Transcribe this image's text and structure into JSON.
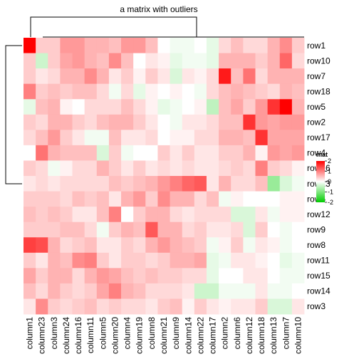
{
  "chart_data": {
    "type": "heatmap",
    "title": "a matrix with outliers",
    "row_labels": [
      "row1",
      "row10",
      "row7",
      "row18",
      "row5",
      "row2",
      "row17",
      "row4",
      "row16",
      "row13",
      "row6",
      "row12",
      "row9",
      "row8",
      "row11",
      "row15",
      "row14",
      "row3"
    ],
    "column_labels": [
      "column1",
      "column23",
      "column3",
      "column24",
      "column16",
      "column11",
      "column5",
      "column20",
      "column4",
      "column19",
      "column8",
      "column21",
      "column9",
      "column14",
      "column22",
      "column17",
      "column2",
      "column6",
      "column12",
      "column18",
      "column13",
      "column7",
      "column10"
    ],
    "legend": {
      "title": "mat",
      "ticks": [
        2,
        1,
        0,
        -1,
        -2
      ],
      "colors": {
        "high": "#ff0000",
        "mid": "#ffffff",
        "low": "#00cc00"
      },
      "range": [
        -2,
        2
      ]
    },
    "values": [
      [
        2.2,
        0.4,
        0.4,
        0.8,
        0.8,
        0.6,
        0.6,
        0.5,
        0.8,
        0.8,
        0.5,
        0.0,
        -0.1,
        -0.1,
        0.0,
        -0.2,
        0.3,
        0.5,
        0.3,
        0.3,
        0.6,
        0.9,
        0.4
      ],
      [
        0.4,
        -0.4,
        0.4,
        0.7,
        0.8,
        0.6,
        0.5,
        0.9,
        0.5,
        0.0,
        0.2,
        0.1,
        -0.2,
        -0.1,
        -0.1,
        -0.2,
        0.6,
        0.6,
        0.6,
        0.4,
        0.6,
        1.2,
        0.3
      ],
      [
        0.4,
        0.2,
        0.3,
        0.6,
        0.6,
        0.9,
        0.6,
        0.2,
        0.4,
        0.1,
        0.4,
        0.2,
        -0.3,
        0.2,
        0.1,
        0.3,
        1.8,
        0.5,
        1.1,
        0.3,
        0.6,
        0.6,
        0.6
      ],
      [
        1.0,
        0.4,
        0.5,
        0.4,
        0.5,
        0.5,
        0.3,
        -0.1,
        0.3,
        -0.2,
        0.1,
        0.0,
        0.1,
        0.0,
        -0.1,
        0.3,
        0.5,
        0.6,
        0.5,
        0.4,
        0.3,
        0.6,
        0.5
      ],
      [
        -0.2,
        0.5,
        0.6,
        0.1,
        0.0,
        0.3,
        0.3,
        0.3,
        0.5,
        0.3,
        0.1,
        -0.2,
        -0.1,
        0.0,
        0.1,
        -0.5,
        0.5,
        0.7,
        0.4,
        0.8,
        1.6,
        2.2,
        0.6
      ],
      [
        0.4,
        0.3,
        0.6,
        0.6,
        0.4,
        0.3,
        0.5,
        0.6,
        0.6,
        0.4,
        0.2,
        0.0,
        -0.1,
        0.2,
        0.2,
        0.3,
        0.5,
        0.5,
        1.6,
        0.8,
        0.7,
        0.8,
        0.8
      ],
      [
        0.3,
        0.5,
        0.8,
        0.4,
        0.2,
        -0.1,
        -0.1,
        0.5,
        0.2,
        0.2,
        0.3,
        0.0,
        0.1,
        0.1,
        0.3,
        0.3,
        0.6,
        0.6,
        0.5,
        1.6,
        0.7,
        0.7,
        0.7
      ],
      [
        0.0,
        1.1,
        0.6,
        0.5,
        0.5,
        0.5,
        -0.3,
        0.4,
        -0.1,
        0.0,
        0.0,
        0.4,
        0.2,
        0.4,
        0.2,
        0.2,
        0.4,
        0.4,
        0.6,
        0.1,
        0.8,
        0.7,
        0.8
      ],
      [
        0.4,
        0.3,
        -0.1,
        0.1,
        0.3,
        0.3,
        0.6,
        0.4,
        0.2,
        0.4,
        0.2,
        0.3,
        0.2,
        0.3,
        0.2,
        0.2,
        0.3,
        0.4,
        0.3,
        1.0,
        0.4,
        0.3,
        0.1
      ],
      [
        0.2,
        0.3,
        0.2,
        0.3,
        0.3,
        0.3,
        0.3,
        0.5,
        0.4,
        0.5,
        0.6,
        0.8,
        1.0,
        1.2,
        1.3,
        0.2,
        0.6,
        0.3,
        0.3,
        0.5,
        -0.8,
        -0.3,
        -0.1
      ],
      [
        0.4,
        0.4,
        0.4,
        0.3,
        0.5,
        0.4,
        0.5,
        0.2,
        0.6,
        0.8,
        0.4,
        0.9,
        0.6,
        0.6,
        0.3,
        0.5,
        -0.1,
        0.1,
        0.0,
        0.0,
        0.0,
        0.1,
        0.1
      ],
      [
        0.5,
        0.4,
        0.5,
        0.4,
        0.2,
        0.2,
        0.5,
        1.0,
        0.0,
        0.4,
        0.6,
        0.6,
        0.3,
        0.2,
        0.3,
        0.3,
        0.3,
        -0.3,
        -0.3,
        0.2,
        -0.1,
        0.1,
        0.1
      ],
      [
        0.4,
        0.4,
        0.4,
        0.5,
        0.5,
        0.3,
        -0.1,
        0.4,
        0.6,
        0.5,
        1.3,
        0.6,
        0.6,
        0.3,
        0.4,
        0.2,
        0.2,
        0.3,
        -0.3,
        0.4,
        0.0,
        -0.1,
        0.0
      ],
      [
        1.5,
        1.4,
        0.6,
        0.3,
        0.4,
        0.5,
        0.2,
        0.2,
        0.4,
        0.3,
        0.6,
        0.8,
        0.6,
        0.5,
        0.4,
        -0.1,
        0.1,
        0.4,
        -0.1,
        0.2,
        0.1,
        -0.1,
        0.0
      ],
      [
        0.4,
        0.2,
        0.6,
        0.5,
        0.9,
        1.0,
        0.4,
        0.2,
        0.4,
        0.4,
        0.3,
        0.4,
        0.6,
        0.6,
        0.7,
        -0.2,
        -0.1,
        0.2,
        0.2,
        0.1,
        0.0,
        -0.2,
        -0.1
      ],
      [
        0.7,
        0.4,
        0.6,
        0.6,
        0.3,
        0.6,
        0.8,
        0.7,
        0.5,
        0.4,
        0.5,
        0.4,
        0.4,
        0.3,
        0.3,
        -0.2,
        0.0,
        0.0,
        0.2,
        0.2,
        0.0,
        -0.1,
        -0.1
      ],
      [
        0.5,
        0.3,
        0.6,
        0.4,
        0.3,
        0.4,
        0.7,
        1.0,
        0.6,
        0.5,
        0.3,
        0.3,
        0.3,
        0.2,
        -0.4,
        -0.4,
        -0.1,
        -0.1,
        -0.1,
        0.2,
        -0.1,
        -0.1,
        0.0
      ],
      [
        0.2,
        0.9,
        0.4,
        0.3,
        0.4,
        0.5,
        0.3,
        0.4,
        0.3,
        0.3,
        0.2,
        0.4,
        0.5,
        0.1,
        0.4,
        0.2,
        0.1,
        0.2,
        0.2,
        0.4,
        -0.3,
        -0.3,
        0.2
      ]
    ]
  }
}
